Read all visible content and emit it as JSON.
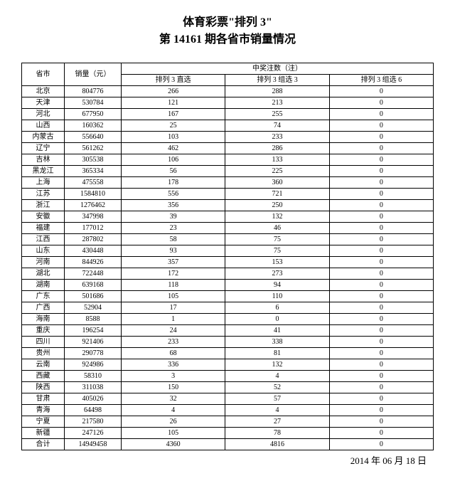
{
  "title_line1": "体育彩票\"排列 3\"",
  "title_line2": "第 14161 期各省市销量情况",
  "date": "2014 年 06 月 18 日",
  "headers": {
    "province": "省市",
    "sales": "销量（元）",
    "prizes": "中奖注数（注）",
    "col1": "排列 3 直选",
    "col2": "排列 3 组选 3",
    "col3": "排列 3 组选 6"
  },
  "rows": [
    {
      "p": "北京",
      "s": "804776",
      "c1": "266",
      "c2": "288",
      "c3": "0"
    },
    {
      "p": "天津",
      "s": "530784",
      "c1": "121",
      "c2": "213",
      "c3": "0"
    },
    {
      "p": "河北",
      "s": "677950",
      "c1": "167",
      "c2": "255",
      "c3": "0"
    },
    {
      "p": "山西",
      "s": "160362",
      "c1": "25",
      "c2": "74",
      "c3": "0"
    },
    {
      "p": "内蒙古",
      "s": "556640",
      "c1": "103",
      "c2": "233",
      "c3": "0"
    },
    {
      "p": "辽宁",
      "s": "561262",
      "c1": "462",
      "c2": "286",
      "c3": "0"
    },
    {
      "p": "吉林",
      "s": "305538",
      "c1": "106",
      "c2": "133",
      "c3": "0"
    },
    {
      "p": "黑龙江",
      "s": "365334",
      "c1": "56",
      "c2": "225",
      "c3": "0"
    },
    {
      "p": "上海",
      "s": "475558",
      "c1": "178",
      "c2": "360",
      "c3": "0"
    },
    {
      "p": "江苏",
      "s": "1584810",
      "c1": "556",
      "c2": "721",
      "c3": "0"
    },
    {
      "p": "浙江",
      "s": "1276462",
      "c1": "356",
      "c2": "250",
      "c3": "0"
    },
    {
      "p": "安徽",
      "s": "347998",
      "c1": "39",
      "c2": "132",
      "c3": "0"
    },
    {
      "p": "福建",
      "s": "177012",
      "c1": "23",
      "c2": "46",
      "c3": "0"
    },
    {
      "p": "江西",
      "s": "287802",
      "c1": "58",
      "c2": "75",
      "c3": "0"
    },
    {
      "p": "山东",
      "s": "430448",
      "c1": "93",
      "c2": "75",
      "c3": "0"
    },
    {
      "p": "河南",
      "s": "844926",
      "c1": "357",
      "c2": "153",
      "c3": "0"
    },
    {
      "p": "湖北",
      "s": "722448",
      "c1": "172",
      "c2": "273",
      "c3": "0"
    },
    {
      "p": "湖南",
      "s": "639168",
      "c1": "118",
      "c2": "94",
      "c3": "0"
    },
    {
      "p": "广东",
      "s": "501686",
      "c1": "105",
      "c2": "110",
      "c3": "0"
    },
    {
      "p": "广西",
      "s": "52904",
      "c1": "17",
      "c2": "6",
      "c3": "0"
    },
    {
      "p": "海南",
      "s": "8588",
      "c1": "1",
      "c2": "0",
      "c3": "0"
    },
    {
      "p": "重庆",
      "s": "196254",
      "c1": "24",
      "c2": "41",
      "c3": "0"
    },
    {
      "p": "四川",
      "s": "921406",
      "c1": "233",
      "c2": "338",
      "c3": "0"
    },
    {
      "p": "贵州",
      "s": "290778",
      "c1": "68",
      "c2": "81",
      "c3": "0"
    },
    {
      "p": "云南",
      "s": "924986",
      "c1": "336",
      "c2": "132",
      "c3": "0"
    },
    {
      "p": "西藏",
      "s": "58310",
      "c1": "3",
      "c2": "4",
      "c3": "0"
    },
    {
      "p": "陕西",
      "s": "311038",
      "c1": "150",
      "c2": "52",
      "c3": "0"
    },
    {
      "p": "甘肃",
      "s": "405026",
      "c1": "32",
      "c2": "57",
      "c3": "0"
    },
    {
      "p": "青海",
      "s": "64498",
      "c1": "4",
      "c2": "4",
      "c3": "0"
    },
    {
      "p": "宁夏",
      "s": "217580",
      "c1": "26",
      "c2": "27",
      "c3": "0"
    },
    {
      "p": "新疆",
      "s": "247126",
      "c1": "105",
      "c2": "78",
      "c3": "0"
    },
    {
      "p": "合计",
      "s": "14949458",
      "c1": "4360",
      "c2": "4816",
      "c3": "0"
    }
  ]
}
